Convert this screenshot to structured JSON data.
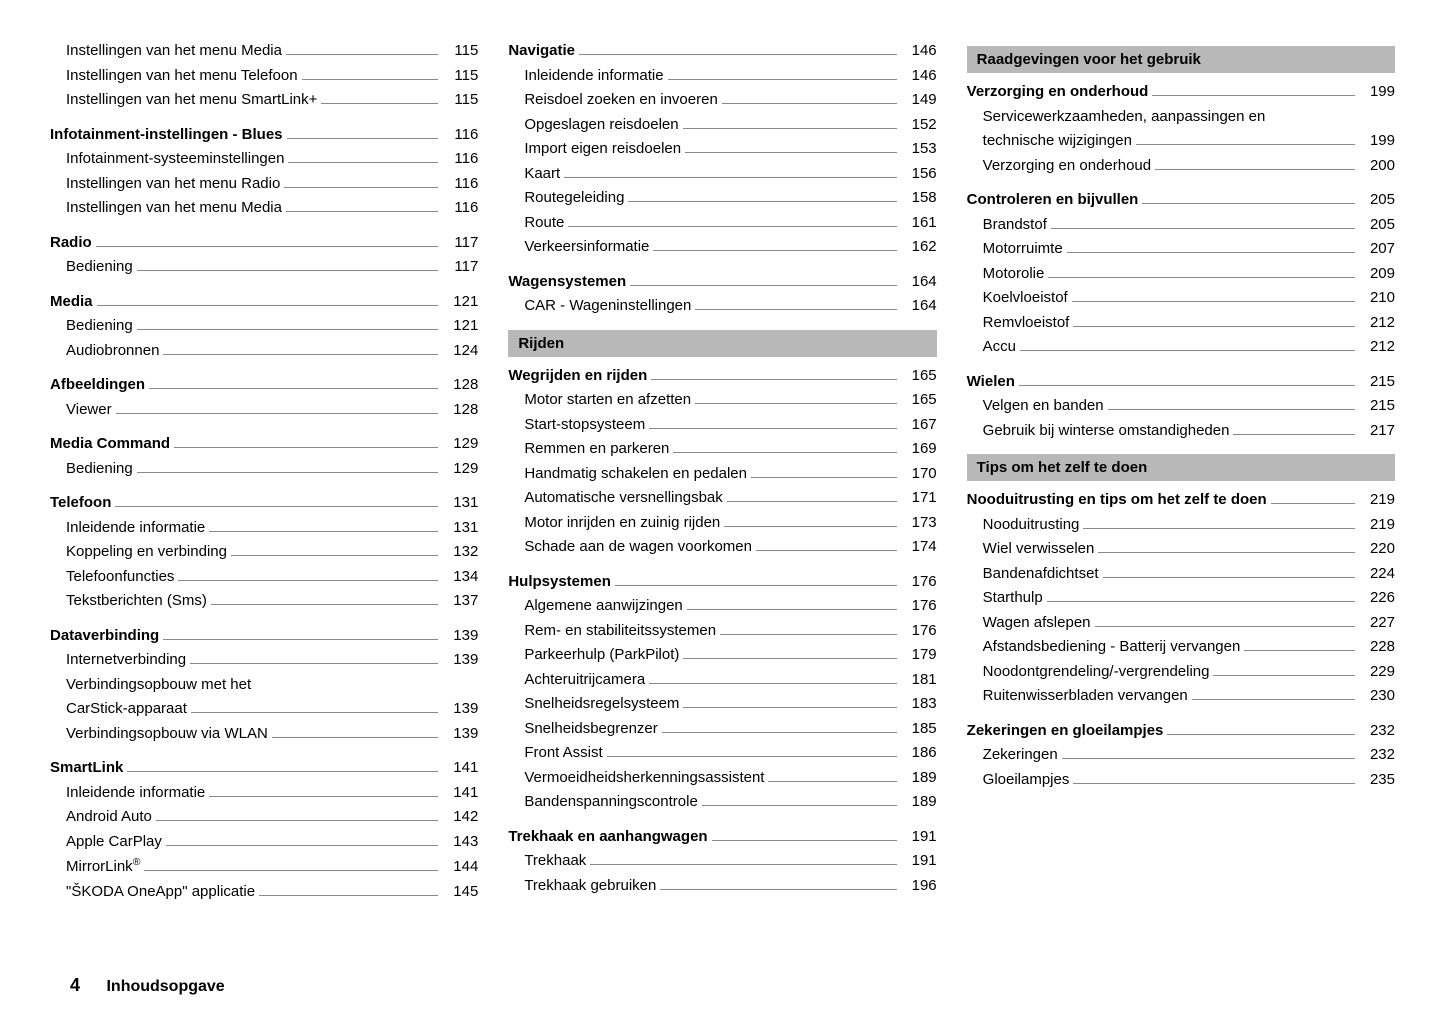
{
  "footer": {
    "page_number": "4",
    "title": "Inhoudsopgave"
  },
  "columns": [
    {
      "blocks": [
        {
          "type": "group",
          "entries": [
            {
              "label": "Instellingen van het menu Media",
              "page": "115",
              "sub": true
            },
            {
              "label": "Instellingen van het menu Telefoon",
              "page": "115",
              "sub": true
            },
            {
              "label": "Instellingen van het menu SmartLink+",
              "page": "115",
              "sub": true
            }
          ]
        },
        {
          "type": "group",
          "entries": [
            {
              "label": "Infotainment-instellingen - Blues",
              "page": "116",
              "bold": true
            },
            {
              "label": "Infotainment-systeeminstellingen",
              "page": "116",
              "sub": true
            },
            {
              "label": "Instellingen van het menu Radio",
              "page": "116",
              "sub": true
            },
            {
              "label": "Instellingen van het menu Media",
              "page": "116",
              "sub": true
            }
          ]
        },
        {
          "type": "group",
          "entries": [
            {
              "label": "Radio",
              "page": "117",
              "bold": true
            },
            {
              "label": "Bediening",
              "page": "117",
              "sub": true
            }
          ]
        },
        {
          "type": "group",
          "entries": [
            {
              "label": "Media",
              "page": "121",
              "bold": true
            },
            {
              "label": "Bediening",
              "page": "121",
              "sub": true
            },
            {
              "label": "Audiobronnen",
              "page": "124",
              "sub": true
            }
          ]
        },
        {
          "type": "group",
          "entries": [
            {
              "label": "Afbeeldingen",
              "page": "128",
              "bold": true
            },
            {
              "label": "Viewer",
              "page": "128",
              "sub": true
            }
          ]
        },
        {
          "type": "group",
          "entries": [
            {
              "label": "Media Command",
              "page": "129",
              "bold": true
            },
            {
              "label": "Bediening",
              "page": "129",
              "sub": true
            }
          ]
        },
        {
          "type": "group",
          "entries": [
            {
              "label": "Telefoon",
              "page": "131",
              "bold": true
            },
            {
              "label": "Inleidende informatie",
              "page": "131",
              "sub": true
            },
            {
              "label": "Koppeling en verbinding",
              "page": "132",
              "sub": true
            },
            {
              "label": "Telefoonfuncties",
              "page": "134",
              "sub": true
            },
            {
              "label": "Tekstberichten (Sms)",
              "page": "137",
              "sub": true
            }
          ]
        },
        {
          "type": "group",
          "entries": [
            {
              "label": "Dataverbinding",
              "page": "139",
              "bold": true
            },
            {
              "label": "Internetverbinding",
              "page": "139",
              "sub": true
            },
            {
              "label": "Verbindingsopbouw met het CarStick-apparaat",
              "page": "139",
              "sub": true,
              "wrap": true
            },
            {
              "label": "Verbindingsopbouw via WLAN",
              "page": "139",
              "sub": true
            }
          ]
        },
        {
          "type": "group",
          "entries": [
            {
              "label": "SmartLink",
              "page": "141",
              "bold": true
            },
            {
              "label": "Inleidende informatie",
              "page": "141",
              "sub": true
            },
            {
              "label": "Android Auto",
              "page": "142",
              "sub": true
            },
            {
              "label": "Apple CarPlay",
              "page": "143",
              "sub": true
            },
            {
              "label": "MirrorLink®",
              "page": "144",
              "sub": true,
              "reg": true
            },
            {
              "label": "\"ŠKODA OneApp\" applicatie",
              "page": "145",
              "sub": true
            }
          ]
        }
      ]
    },
    {
      "blocks": [
        {
          "type": "group",
          "entries": [
            {
              "label": "Navigatie",
              "page": "146",
              "bold": true
            },
            {
              "label": "Inleidende informatie",
              "page": "146",
              "sub": true
            },
            {
              "label": "Reisdoel zoeken en invoeren",
              "page": "149",
              "sub": true
            },
            {
              "label": "Opgeslagen reisdoelen",
              "page": "152",
              "sub": true
            },
            {
              "label": "Import eigen reisdoelen",
              "page": "153",
              "sub": true
            },
            {
              "label": "Kaart",
              "page": "156",
              "sub": true
            },
            {
              "label": "Routegeleiding",
              "page": "158",
              "sub": true
            },
            {
              "label": "Route",
              "page": "161",
              "sub": true
            },
            {
              "label": "Verkeersinformatie",
              "page": "162",
              "sub": true
            }
          ]
        },
        {
          "type": "group",
          "entries": [
            {
              "label": "Wagensystemen",
              "page": "164",
              "bold": true
            },
            {
              "label": "CAR - Wageninstellingen",
              "page": "164",
              "sub": true
            }
          ]
        },
        {
          "type": "bar",
          "text": "Rijden"
        },
        {
          "type": "group",
          "entries": [
            {
              "label": "Wegrijden en rijden",
              "page": "165",
              "bold": true
            },
            {
              "label": "Motor starten en afzetten",
              "page": "165",
              "sub": true
            },
            {
              "label": "Start-stopsysteem",
              "page": "167",
              "sub": true
            },
            {
              "label": "Remmen en parkeren",
              "page": "169",
              "sub": true
            },
            {
              "label": "Handmatig schakelen en pedalen",
              "page": "170",
              "sub": true
            },
            {
              "label": "Automatische versnellingsbak",
              "page": "171",
              "sub": true
            },
            {
              "label": "Motor inrijden en zuinig rijden",
              "page": "173",
              "sub": true
            },
            {
              "label": "Schade aan de wagen voorkomen",
              "page": "174",
              "sub": true
            }
          ]
        },
        {
          "type": "group",
          "entries": [
            {
              "label": "Hulpsystemen",
              "page": "176",
              "bold": true
            },
            {
              "label": "Algemene aanwijzingen",
              "page": "176",
              "sub": true
            },
            {
              "label": "Rem- en stabiliteitssystemen",
              "page": "176",
              "sub": true
            },
            {
              "label": "Parkeerhulp (ParkPilot)",
              "page": "179",
              "sub": true
            },
            {
              "label": "Achteruitrijcamera",
              "page": "181",
              "sub": true
            },
            {
              "label": "Snelheidsregelsysteem",
              "page": "183",
              "sub": true
            },
            {
              "label": "Snelheidsbegrenzer",
              "page": "185",
              "sub": true
            },
            {
              "label": "Front Assist",
              "page": "186",
              "sub": true
            },
            {
              "label": "Vermoeidheidsherkenningsassistent",
              "page": "189",
              "sub": true
            },
            {
              "label": "Bandenspanningscontrole",
              "page": "189",
              "sub": true
            }
          ]
        },
        {
          "type": "group",
          "entries": [
            {
              "label": "Trekhaak en aanhangwagen",
              "page": "191",
              "bold": true
            },
            {
              "label": "Trekhaak",
              "page": "191",
              "sub": true
            },
            {
              "label": "Trekhaak gebruiken",
              "page": "196",
              "sub": true
            }
          ]
        }
      ]
    },
    {
      "blocks": [
        {
          "type": "bar",
          "text": "Raadgevingen voor het gebruik"
        },
        {
          "type": "group",
          "entries": [
            {
              "label": "Verzorging en onderhoud",
              "page": "199",
              "bold": true
            },
            {
              "label": "Servicewerkzaamheden, aanpassingen en technische wijzigingen",
              "page": "199",
              "sub": true,
              "wrap": true
            },
            {
              "label": "Verzorging en onderhoud",
              "page": "200",
              "sub": true
            }
          ]
        },
        {
          "type": "group",
          "entries": [
            {
              "label": "Controleren en bijvullen",
              "page": "205",
              "bold": true
            },
            {
              "label": "Brandstof",
              "page": "205",
              "sub": true
            },
            {
              "label": "Motorruimte",
              "page": "207",
              "sub": true
            },
            {
              "label": "Motorolie",
              "page": "209",
              "sub": true
            },
            {
              "label": "Koelvloeistof",
              "page": "210",
              "sub": true
            },
            {
              "label": "Remvloeistof",
              "page": "212",
              "sub": true
            },
            {
              "label": "Accu",
              "page": "212",
              "sub": true
            }
          ]
        },
        {
          "type": "group",
          "entries": [
            {
              "label": "Wielen",
              "page": "215",
              "bold": true
            },
            {
              "label": "Velgen en banden",
              "page": "215",
              "sub": true
            },
            {
              "label": "Gebruik bij winterse omstandigheden",
              "page": "217",
              "sub": true
            }
          ]
        },
        {
          "type": "bar",
          "text": "Tips om het zelf te doen"
        },
        {
          "type": "group",
          "entries": [
            {
              "label": "Nooduitrusting en tips om het zelf te doen",
              "page": "219",
              "bold": true
            },
            {
              "label": "Nooduitrusting",
              "page": "219",
              "sub": true
            },
            {
              "label": "Wiel verwisselen",
              "page": "220",
              "sub": true
            },
            {
              "label": "Bandenafdichtset",
              "page": "224",
              "sub": true
            },
            {
              "label": "Starthulp",
              "page": "226",
              "sub": true
            },
            {
              "label": "Wagen afslepen",
              "page": "227",
              "sub": true
            },
            {
              "label": "Afstandsbediening - Batterij vervangen",
              "page": "228",
              "sub": true
            },
            {
              "label": "Noodontgrendeling/-vergrendeling",
              "page": "229",
              "sub": true
            },
            {
              "label": "Ruitenwisserbladen vervangen",
              "page": "230",
              "sub": true
            }
          ]
        },
        {
          "type": "group",
          "entries": [
            {
              "label": "Zekeringen en gloeilampjes",
              "page": "232",
              "bold": true
            },
            {
              "label": "Zekeringen",
              "page": "232",
              "sub": true
            },
            {
              "label": "Gloeilampjes",
              "page": "235",
              "sub": true
            }
          ]
        }
      ]
    }
  ]
}
